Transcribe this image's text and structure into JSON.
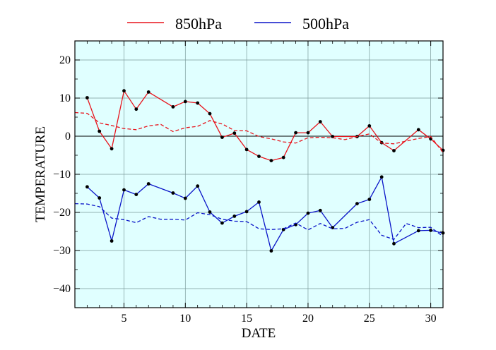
{
  "chart_data": {
    "type": "line",
    "xlabel": "DATE",
    "ylabel": "TEMPERATURE",
    "xlim": [
      1,
      31
    ],
    "ylim": [
      -45,
      25
    ],
    "x_ticks": [
      5,
      10,
      15,
      20,
      25,
      30
    ],
    "y_ticks": [
      20,
      10,
      0,
      -10,
      -20,
      -30,
      -40
    ],
    "grid": true,
    "zero_line": true,
    "background": "#e0ffff",
    "legend_position": "top",
    "series": [
      {
        "name": "850hPa",
        "color": "#e8141c",
        "style": "solid",
        "markers": true,
        "points": [
          [
            2,
            10.1
          ],
          [
            3,
            1.3
          ],
          [
            4,
            -3.3
          ],
          [
            5,
            11.9
          ],
          [
            6,
            7.1
          ],
          [
            7,
            11.6
          ],
          [
            9,
            7.7
          ],
          [
            10,
            9.1
          ],
          [
            11,
            8.7
          ],
          [
            12,
            5.9
          ],
          [
            13,
            -0.3
          ],
          [
            14,
            0.8
          ],
          [
            15,
            -3.5
          ],
          [
            16,
            -5.3
          ],
          [
            17,
            -6.4
          ],
          [
            18,
            -5.6
          ],
          [
            19,
            0.9
          ],
          [
            20,
            0.9
          ],
          [
            21,
            3.8
          ],
          [
            22,
            -0.1
          ],
          [
            24,
            -0.1
          ],
          [
            25,
            2.7
          ],
          [
            26,
            -1.7
          ],
          [
            27,
            -3.8
          ],
          [
            29,
            1.7
          ],
          [
            30,
            -0.7
          ],
          [
            31,
            -3.7
          ]
        ]
      },
      {
        "name": "",
        "color": "#e8141c",
        "style": "dashed",
        "markers": false,
        "points": [
          [
            1,
            6.2
          ],
          [
            2,
            6.0
          ],
          [
            3,
            3.5
          ],
          [
            4,
            2.8
          ],
          [
            5,
            2.0
          ],
          [
            6,
            1.7
          ],
          [
            7,
            2.7
          ],
          [
            8,
            3.1
          ],
          [
            9,
            1.2
          ],
          [
            10,
            2.2
          ],
          [
            11,
            2.6
          ],
          [
            12,
            4.1
          ],
          [
            13,
            3.2
          ],
          [
            14,
            1.5
          ],
          [
            15,
            1.4
          ],
          [
            16,
            -0.1
          ],
          [
            17,
            -0.7
          ],
          [
            18,
            -1.5
          ],
          [
            19,
            -1.8
          ],
          [
            20,
            -0.4
          ],
          [
            21,
            -0.3
          ],
          [
            22,
            -0.4
          ],
          [
            23,
            -0.9
          ],
          [
            24,
            -0.1
          ],
          [
            25,
            0.6
          ],
          [
            26,
            -1.8
          ],
          [
            27,
            -2.0
          ],
          [
            28,
            -1.3
          ],
          [
            29,
            -0.6
          ],
          [
            30,
            -0.1
          ],
          [
            31,
            -4.3
          ]
        ]
      },
      {
        "name": "500hPa",
        "color": "#0a14c8",
        "style": "solid",
        "markers": true,
        "points": [
          [
            2,
            -13.3
          ],
          [
            3,
            -16.2
          ],
          [
            4,
            -27.5
          ],
          [
            5,
            -14.1
          ],
          [
            6,
            -15.3
          ],
          [
            7,
            -12.5
          ],
          [
            9,
            -14.9
          ],
          [
            10,
            -16.3
          ],
          [
            11,
            -13.1
          ],
          [
            12,
            -19.9
          ],
          [
            13,
            -22.8
          ],
          [
            14,
            -21.0
          ],
          [
            15,
            -19.8
          ],
          [
            16,
            -17.3
          ],
          [
            17,
            -30.1
          ],
          [
            18,
            -24.5
          ],
          [
            19,
            -23.2
          ],
          [
            20,
            -20.2
          ],
          [
            21,
            -19.5
          ],
          [
            22,
            -24.0
          ],
          [
            24,
            -17.7
          ],
          [
            25,
            -16.6
          ],
          [
            26,
            -10.7
          ],
          [
            27,
            -28.2
          ],
          [
            29,
            -24.8
          ],
          [
            30,
            -24.7
          ],
          [
            31,
            -25.4
          ]
        ]
      },
      {
        "name": "",
        "color": "#0a14c8",
        "style": "dashed",
        "markers": false,
        "points": [
          [
            1,
            -17.7
          ],
          [
            2,
            -17.8
          ],
          [
            3,
            -18.5
          ],
          [
            4,
            -21.5
          ],
          [
            5,
            -21.9
          ],
          [
            6,
            -22.7
          ],
          [
            7,
            -21.1
          ],
          [
            8,
            -21.8
          ],
          [
            9,
            -21.8
          ],
          [
            10,
            -22.0
          ],
          [
            11,
            -20.1
          ],
          [
            12,
            -20.6
          ],
          [
            13,
            -21.8
          ],
          [
            14,
            -22.3
          ],
          [
            15,
            -22.4
          ],
          [
            16,
            -24.3
          ],
          [
            17,
            -24.5
          ],
          [
            18,
            -24.3
          ],
          [
            19,
            -22.8
          ],
          [
            20,
            -24.6
          ],
          [
            21,
            -22.9
          ],
          [
            22,
            -24.3
          ],
          [
            23,
            -24.2
          ],
          [
            24,
            -22.6
          ],
          [
            25,
            -21.9
          ],
          [
            26,
            -26.0
          ],
          [
            27,
            -27.1
          ],
          [
            28,
            -22.9
          ],
          [
            29,
            -24.0
          ],
          [
            30,
            -23.9
          ],
          [
            31,
            -26.3
          ]
        ]
      }
    ]
  }
}
